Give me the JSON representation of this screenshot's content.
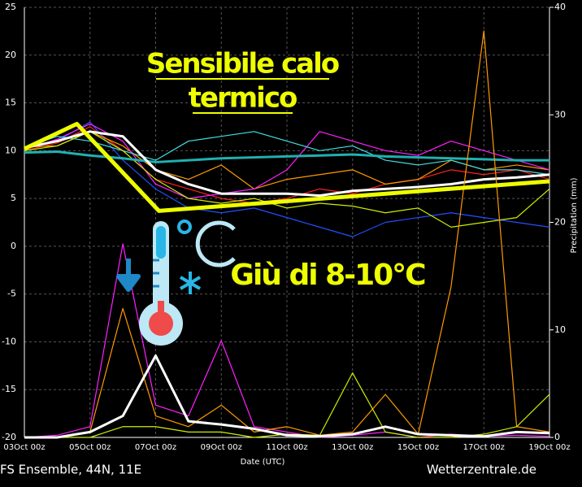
{
  "chart_data": {
    "type": "line",
    "annotations": [
      "Sensibile calo",
      "termico",
      "Giù di 8-10°C"
    ],
    "subtitle": "FS Ensemble, 44N, 11E",
    "source": "Wetterzentrale.de",
    "x_label": "Date (UTC)",
    "y2_label": "Precipitation (mm)",
    "x": [
      0,
      1,
      2,
      3,
      4,
      5,
      6,
      7,
      8,
      9,
      10,
      11,
      12,
      13,
      14,
      15,
      16
    ],
    "xlim": [
      0,
      16
    ],
    "xticks": [
      {
        "value": 0,
        "label": "03Oct 00z"
      },
      {
        "value": 2,
        "label": "05Oct 00z"
      },
      {
        "value": 4,
        "label": "07Oct 00z"
      },
      {
        "value": 6,
        "label": "09Oct 00z"
      },
      {
        "value": 8,
        "label": "11Oct 00z"
      },
      {
        "value": 10,
        "label": "13Oct 00z"
      },
      {
        "value": 12,
        "label": "15Oct 00z"
      },
      {
        "value": 14,
        "label": "17Oct 00z"
      },
      {
        "value": 16,
        "label": "19Oct 00z"
      }
    ],
    "ylim": [
      -20,
      25
    ],
    "yticks": [
      -20,
      -15,
      -10,
      -5,
      0,
      5,
      10,
      15,
      20,
      25
    ],
    "y2lim": [
      0,
      40
    ],
    "y2ticks": [
      0,
      10,
      20,
      30,
      40
    ],
    "grid": true,
    "series": [
      {
        "color": "#ff2020",
        "values": [
          10,
          10.8,
          12.5,
          10,
          7,
          6,
          5,
          4.5,
          5,
          6,
          5.5,
          6.5,
          7,
          8,
          7.5,
          8,
          7
        ]
      },
      {
        "color": "#2050ff",
        "values": [
          10.2,
          11,
          13,
          9,
          6,
          4,
          3.5,
          4,
          3,
          2,
          1,
          2.5,
          3,
          3.5,
          3,
          2.5,
          2
        ]
      },
      {
        "color": "#ff9900",
        "values": [
          10.4,
          10.5,
          12,
          10.5,
          8,
          7,
          8.5,
          6,
          7,
          7.5,
          8,
          6.5,
          7,
          9,
          8,
          8.5,
          8
        ]
      },
      {
        "color": "#ff20ff",
        "values": [
          10.1,
          11.2,
          12.8,
          11,
          6.5,
          5,
          5.5,
          6,
          8,
          12,
          11,
          10,
          9.5,
          11,
          10,
          9,
          8
        ]
      },
      {
        "color": "#40e0e0",
        "values": [
          10.3,
          11.5,
          11,
          10,
          9,
          11,
          11.5,
          12,
          11,
          10,
          10.5,
          9,
          8.5,
          9,
          8,
          8,
          7.5
        ]
      },
      {
        "color": "#ccee00",
        "values": [
          10,
          10.5,
          12,
          10,
          7,
          5,
          4.5,
          5,
          4,
          4.5,
          4.2,
          3.5,
          4,
          2,
          2.5,
          3,
          6
        ]
      },
      {
        "color": "#20b0b0",
        "values": [
          9.8,
          9.9,
          9.5,
          9.2,
          8.8,
          9,
          9.2,
          9.3,
          9.4,
          9.5,
          9.6,
          9.4,
          9.3,
          9.2,
          9.1,
          9,
          9
        ]
      },
      {
        "color": "#ffffff",
        "values": [
          10.3,
          11,
          12,
          11.5,
          8,
          6.5,
          5.5,
          5.5,
          5.5,
          5.3,
          5.8,
          6,
          6.2,
          6.5,
          7,
          7.2,
          7.5
        ]
      },
      {
        "color": "#ff20ff",
        "axis": "y2",
        "values": [
          0,
          0.2,
          1,
          18,
          3,
          2,
          9,
          1,
          0.5,
          0,
          0.2,
          0.5,
          0,
          0.3,
          0.1,
          0.2,
          0.1
        ]
      },
      {
        "color": "#ff9900",
        "axis": "y2",
        "values": [
          0,
          0,
          0.5,
          12,
          2,
          1,
          3,
          0.5,
          1,
          0.2,
          0.5,
          4,
          0.3,
          14,
          37.8,
          1,
          0.5
        ]
      },
      {
        "color": "#ccee00",
        "axis": "y2",
        "values": [
          0,
          0,
          0,
          1,
          1,
          0.5,
          0.5,
          0,
          0.3,
          0.2,
          6,
          0.5,
          0,
          0,
          0.3,
          1,
          4
        ]
      },
      {
        "color": "#ffffff",
        "axis": "y2",
        "values": [
          0,
          0,
          0.5,
          2,
          7.6,
          1.5,
          1.2,
          0.8,
          0.2,
          0.1,
          0.3,
          1,
          0.3,
          0.2,
          0.1,
          0.5,
          0.4
        ]
      },
      {
        "color": "#eeff00",
        "x": [
          0,
          1.6,
          4.1,
          16
        ],
        "values": [
          10.2,
          12.8,
          3.7,
          6.8
        ]
      }
    ]
  }
}
